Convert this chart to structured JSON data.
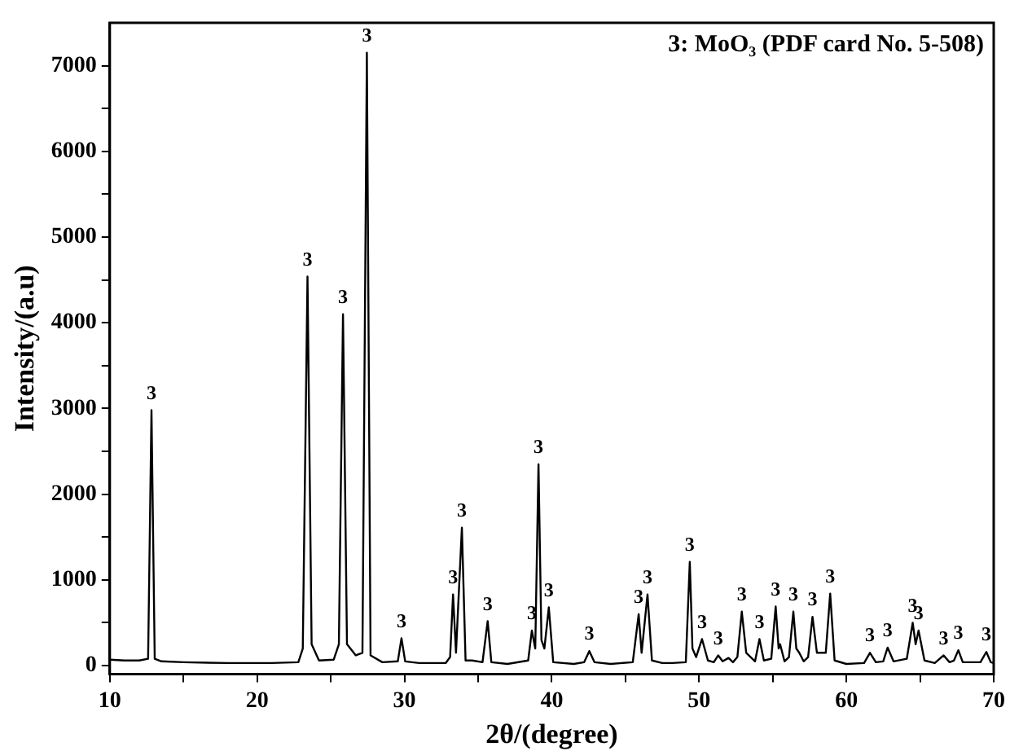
{
  "chart_data": {
    "type": "line",
    "xlabel": "2θ/(degree)",
    "ylabel": "Intensity/(a.u)",
    "marker": "none",
    "line_style": "solid",
    "grid": false,
    "legend": false,
    "xlim": [
      10,
      70
    ],
    "ylim": [
      -100,
      7500
    ],
    "xticks": [
      10,
      {
        "value": 15,
        "label": null
      },
      20,
      {
        "value": 25,
        "label": null
      },
      30,
      {
        "value": 35,
        "label": null
      },
      40,
      {
        "value": 45,
        "label": null
      },
      50,
      {
        "value": 55,
        "label": null
      },
      60,
      {
        "value": 65,
        "label": null
      },
      70
    ],
    "yticks": [
      0,
      {
        "value": 500,
        "label": null
      },
      1000,
      {
        "value": 1500,
        "label": null
      },
      2000,
      {
        "value": 2500,
        "label": null
      },
      3000,
      {
        "value": 3500,
        "label": null
      },
      4000,
      {
        "value": 4500,
        "label": null
      },
      5000,
      {
        "value": 5500,
        "label": null
      },
      6000,
      {
        "value": 6500,
        "label": null
      },
      7000
    ],
    "series": [
      {
        "color": "#000000",
        "x": [
          10,
          11,
          12,
          12.6,
          12.83,
          13.05,
          13.5,
          15,
          18,
          21,
          22.8,
          23.1,
          23.42,
          23.7,
          24.2,
          25.2,
          25.55,
          25.83,
          26.1,
          26.7,
          27.15,
          27.45,
          27.7,
          28.5,
          29.55,
          29.8,
          30.05,
          31,
          32.8,
          33.1,
          33.3,
          33.5,
          33.9,
          34.15,
          34.6,
          35.3,
          35.65,
          35.9,
          37,
          38.4,
          38.65,
          38.88,
          39.1,
          39.3,
          39.5,
          39.8,
          40.1,
          41.5,
          42.2,
          42.55,
          42.9,
          44,
          45.5,
          45.9,
          46.1,
          46.5,
          46.8,
          47.5,
          48.2,
          49.1,
          49.37,
          49.55,
          49.8,
          50.2,
          50.6,
          51,
          51.3,
          51.6,
          52,
          52.3,
          52.6,
          52.9,
          53.2,
          53.8,
          54.1,
          54.4,
          54.9,
          55.2,
          55.4,
          55.5,
          55.8,
          56.1,
          56.4,
          56.6,
          56.8,
          57.1,
          57.4,
          57.7,
          58,
          58.6,
          58.9,
          59.2,
          60,
          61.2,
          61.6,
          62,
          62.5,
          62.8,
          63.2,
          64.1,
          64.5,
          64.7,
          64.9,
          65.3,
          66,
          66.6,
          67,
          67.3,
          67.6,
          67.9,
          69.1,
          69.5,
          69.8,
          70
        ],
        "values": [
          70,
          60,
          60,
          80,
          2980,
          80,
          50,
          40,
          30,
          30,
          40,
          200,
          4540,
          250,
          60,
          70,
          250,
          4100,
          250,
          120,
          150,
          7150,
          120,
          40,
          50,
          320,
          50,
          30,
          30,
          100,
          830,
          150,
          1610,
          60,
          60,
          40,
          520,
          40,
          20,
          60,
          410,
          200,
          2350,
          300,
          200,
          680,
          40,
          20,
          40,
          170,
          40,
          20,
          40,
          600,
          150,
          830,
          60,
          30,
          30,
          40,
          1210,
          200,
          100,
          310,
          60,
          40,
          120,
          50,
          90,
          40,
          100,
          630,
          150,
          50,
          310,
          60,
          80,
          690,
          200,
          250,
          50,
          100,
          630,
          200,
          150,
          50,
          100,
          570,
          150,
          150,
          840,
          60,
          20,
          30,
          150,
          40,
          50,
          210,
          50,
          80,
          500,
          250,
          410,
          60,
          30,
          120,
          40,
          60,
          180,
          40,
          40,
          160,
          40,
          30
        ]
      }
    ],
    "annotations": [
      "3: MoO₃ (PDF card No. 5-508)",
      {
        "text": "3",
        "x": 12.83,
        "y": 2980
      },
      {
        "text": "3",
        "x": 23.42,
        "y": 4540
      },
      {
        "text": "3",
        "x": 25.83,
        "y": 4100
      },
      {
        "text": "3",
        "x": 27.45,
        "y": 7150
      },
      {
        "text": "3",
        "x": 29.8,
        "y": 320
      },
      {
        "text": "3",
        "x": 33.3,
        "y": 830
      },
      {
        "text": "3",
        "x": 33.9,
        "y": 1610
      },
      {
        "text": "3",
        "x": 35.65,
        "y": 520
      },
      {
        "text": "3",
        "x": 38.65,
        "y": 410
      },
      {
        "text": "3",
        "x": 39.1,
        "y": 2350
      },
      {
        "text": "3",
        "x": 39.8,
        "y": 680
      },
      {
        "text": "3",
        "x": 42.55,
        "y": 170
      },
      {
        "text": "3",
        "x": 45.9,
        "y": 600
      },
      {
        "text": "3",
        "x": 46.5,
        "y": 830
      },
      {
        "text": "3",
        "x": 49.37,
        "y": 1210
      },
      {
        "text": "3",
        "x": 50.2,
        "y": 310
      },
      {
        "text": "3",
        "x": 51.3,
        "y": 120
      },
      {
        "text": "3",
        "x": 52.9,
        "y": 630
      },
      {
        "text": "3",
        "x": 54.1,
        "y": 310
      },
      {
        "text": "3",
        "x": 55.2,
        "y": 690
      },
      {
        "text": "3",
        "x": 56.4,
        "y": 630
      },
      {
        "text": "3",
        "x": 57.7,
        "y": 570
      },
      {
        "text": "3",
        "x": 58.9,
        "y": 840
      },
      {
        "text": "3",
        "x": 61.6,
        "y": 150
      },
      {
        "text": "3",
        "x": 62.8,
        "y": 210
      },
      {
        "text": "3",
        "x": 64.5,
        "y": 500
      },
      {
        "text": "3",
        "x": 64.9,
        "y": 410
      },
      {
        "text": "3",
        "x": 66.6,
        "y": 120
      },
      {
        "text": "3",
        "x": 67.6,
        "y": 180
      },
      {
        "text": "3",
        "x": 69.5,
        "y": 160
      }
    ]
  }
}
